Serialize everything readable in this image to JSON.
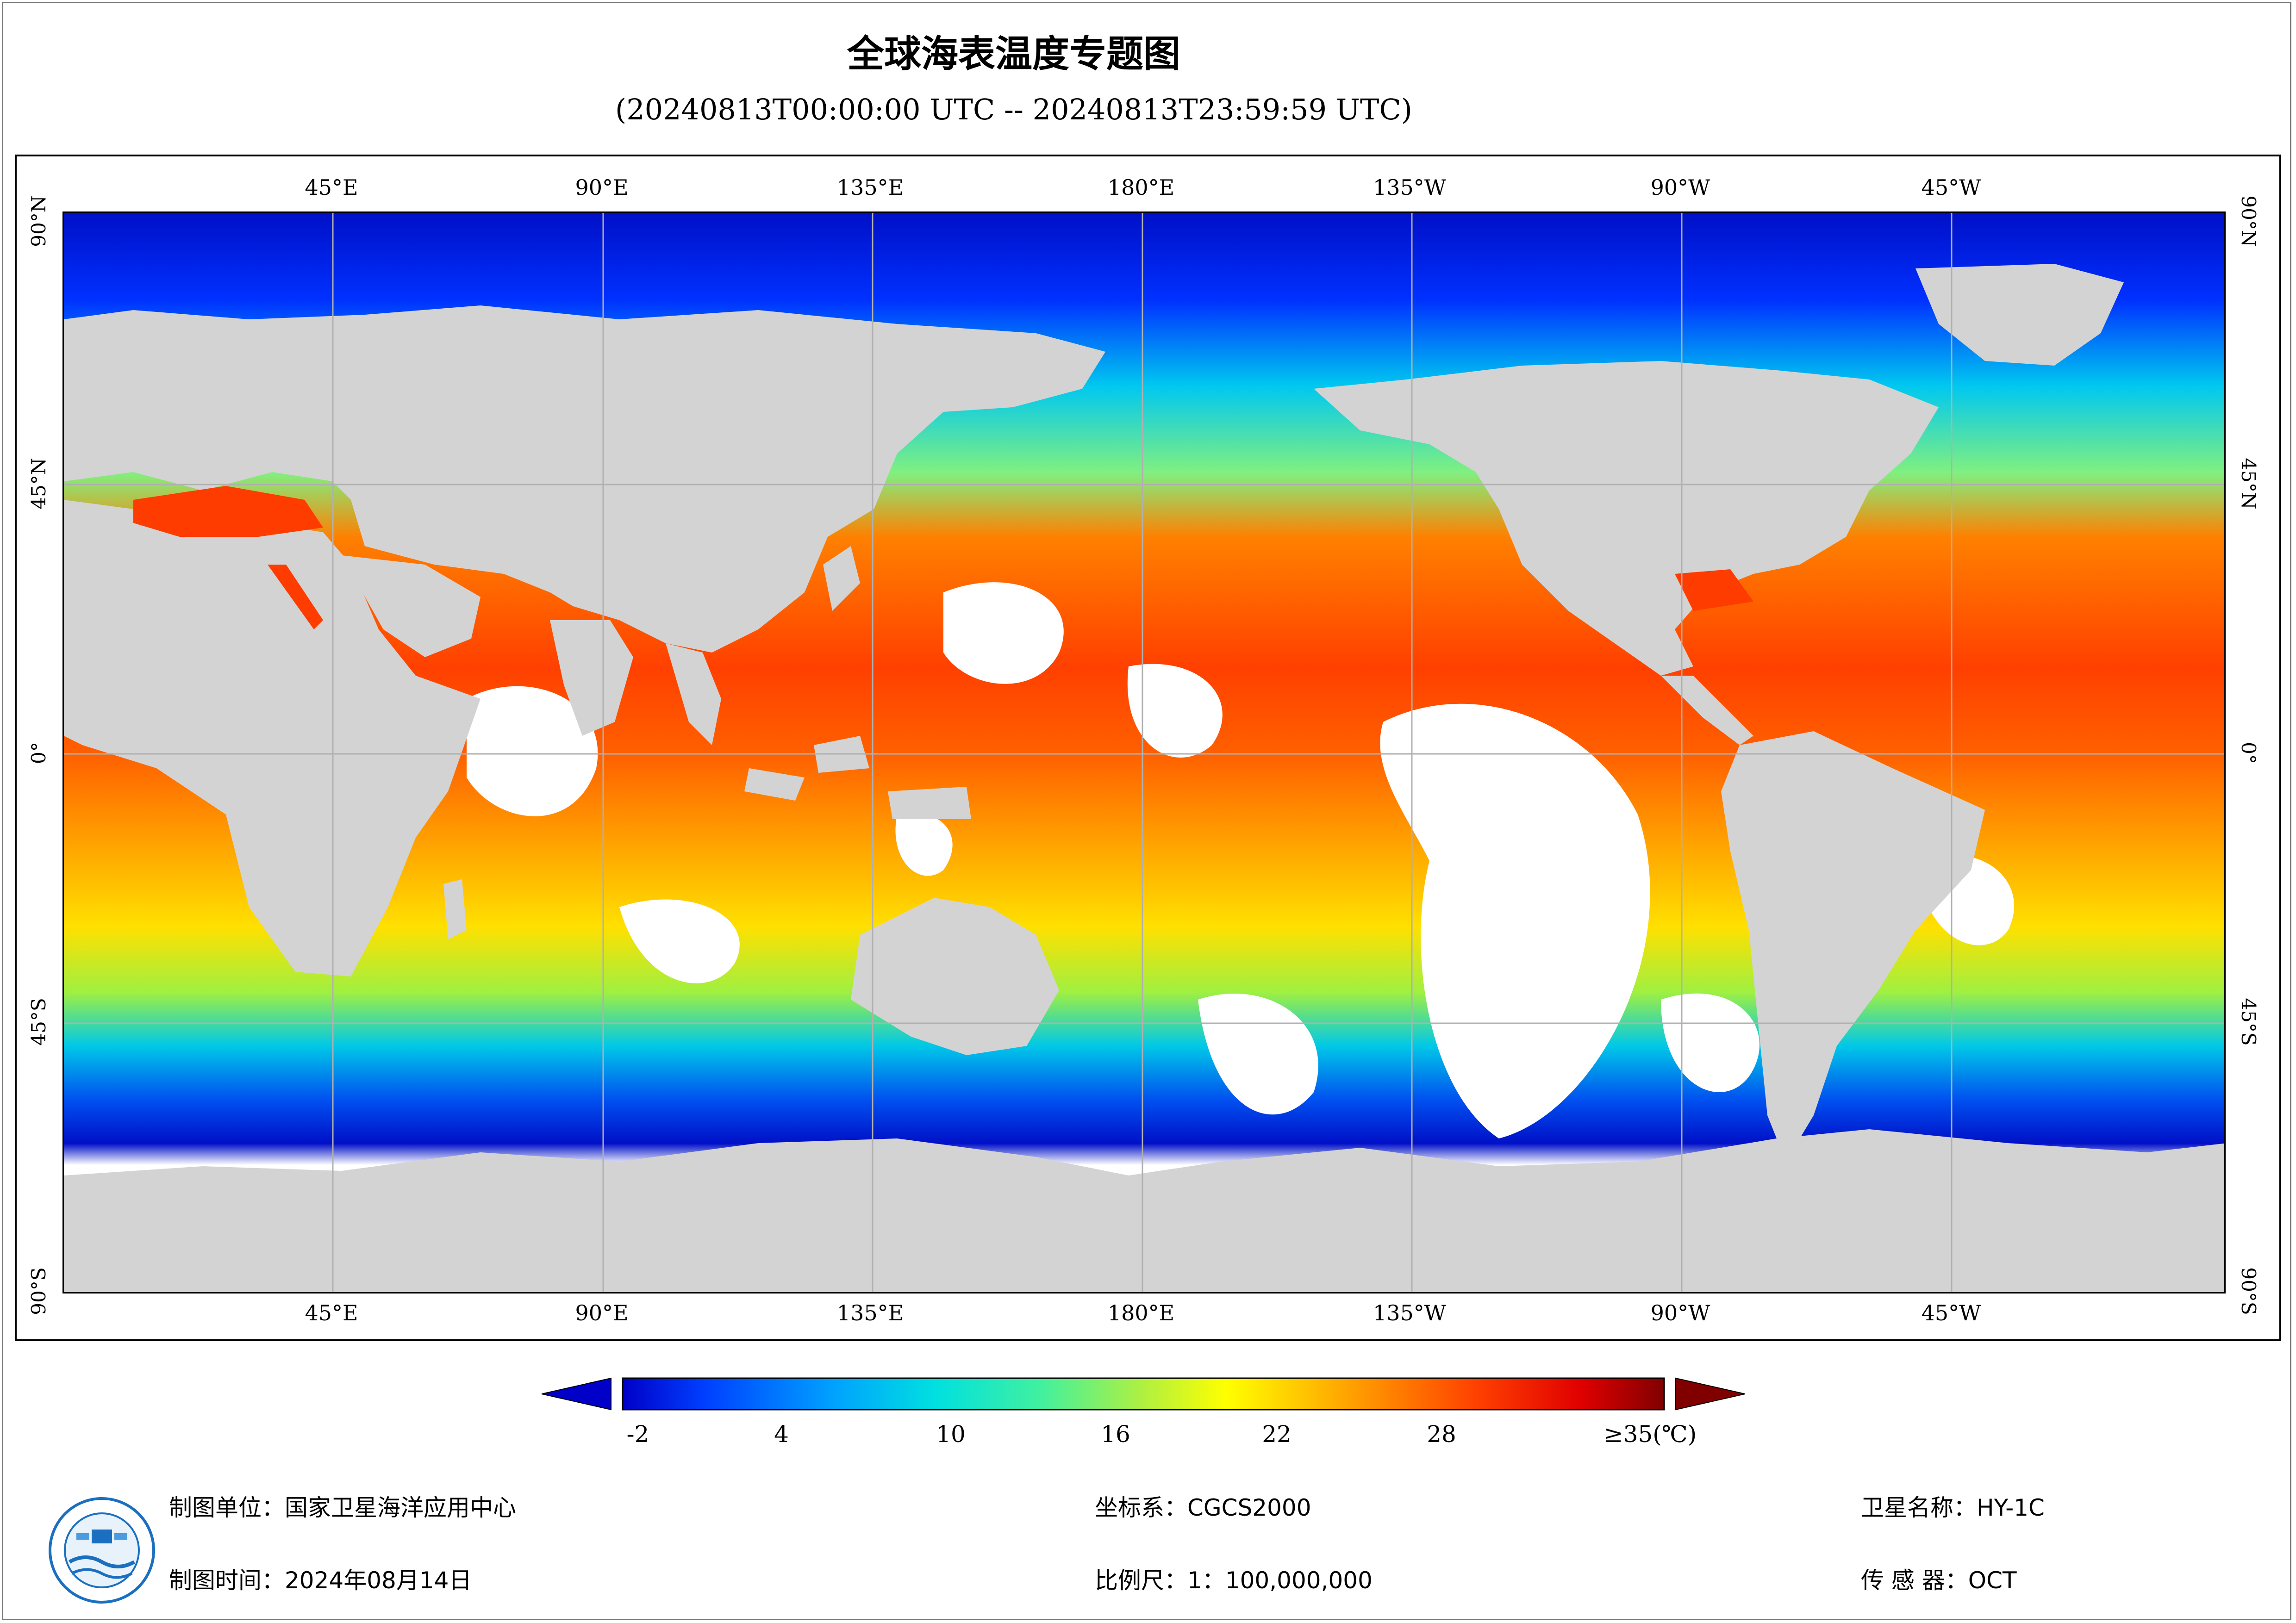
{
  "header": {
    "title": "全球海表温度专题图",
    "subtitle": "(20240813T00:00:00 UTC -- 20240813T23:59:59 UTC)"
  },
  "map": {
    "projection_grid": true,
    "lon_labels": [
      "45°E",
      "90°E",
      "135°E",
      "180°E",
      "135°W",
      "90°W",
      "45°W"
    ],
    "lat_labels": [
      "90°N",
      "45°N",
      "0°",
      "45°S",
      "90°S"
    ],
    "colors": {
      "land": "#d3d3d3",
      "no_data": "#ffffff",
      "grid": "#b0b0b0"
    }
  },
  "legend": {
    "ticks": [
      "-2",
      "4",
      "10",
      "16",
      "22",
      "28",
      "≥35(℃)"
    ],
    "range_min": -2,
    "range_max": 35,
    "unit": "℃",
    "palette": [
      "#0000c8",
      "#0040ff",
      "#00a0ff",
      "#00e0e0",
      "#40f0a0",
      "#b0f040",
      "#ffff00",
      "#ffc000",
      "#ff8000",
      "#ff4000",
      "#e00000",
      "#800000"
    ]
  },
  "footer": {
    "producer": "制图单位：国家卫星海洋应用中心",
    "date": "制图时间：2024年08月14日",
    "crs": "坐标系：CGCS2000",
    "scale": "比例尺：1：100,000,000",
    "satellite": "卫星名称：HY-1C",
    "sensor": "传 感 器：OCT"
  }
}
